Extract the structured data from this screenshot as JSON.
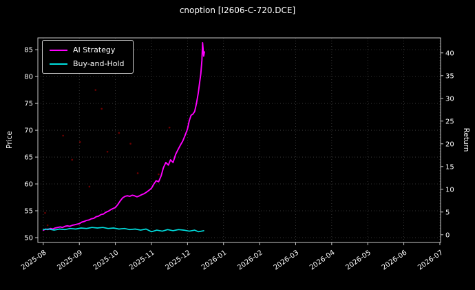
{
  "chart_data": {
    "type": "line",
    "title": "cnoption [I2606-C-720.DCE]",
    "ylabel_left": "Price",
    "ylabel_right": "Return",
    "grid": true,
    "legend_position": "upper-left",
    "xticks": [
      "2025-08",
      "2025-09",
      "2025-10",
      "2025-11",
      "2025-12",
      "2026-01",
      "2026-02",
      "2026-03",
      "2026-04",
      "2026-05",
      "2026-06",
      "2026-07"
    ],
    "yticks_left": [
      50,
      55,
      60,
      65,
      70,
      75,
      80,
      85
    ],
    "yticks_right": [
      0,
      5,
      10,
      15,
      20,
      25,
      30,
      35,
      40
    ],
    "xlim": [
      -0.15,
      11.02
    ],
    "ylim_left": [
      49.1,
      87.2
    ],
    "ylim_right": [
      -1.7,
      43.3
    ],
    "colors": {
      "background": "#000000",
      "text": "#ffffff",
      "grid": "#454545",
      "spine": "#c8c8c8",
      "ai_strategy": "#ff00ff",
      "buy_and_hold": "#00e0e0",
      "signal_dots": "#b30000"
    },
    "series": [
      {
        "name": "AI Strategy",
        "color": "#ff00ff",
        "axis": "left",
        "x": [
          0,
          0.07,
          0.13,
          0.2,
          0.27,
          0.33,
          0.4,
          0.47,
          0.53,
          0.6,
          0.67,
          0.73,
          0.8,
          0.87,
          0.93,
          1,
          1.07,
          1.13,
          1.2,
          1.27,
          1.33,
          1.4,
          1.47,
          1.53,
          1.6,
          1.67,
          1.73,
          1.8,
          1.87,
          1.93,
          2,
          2.07,
          2.13,
          2.2,
          2.27,
          2.33,
          2.4,
          2.47,
          2.53,
          2.6,
          2.67,
          2.73,
          2.8,
          2.87,
          2.93,
          3,
          3.07,
          3.13,
          3.2,
          3.27,
          3.33,
          3.4,
          3.47,
          3.53,
          3.6,
          3.67,
          3.73,
          3.8,
          3.87,
          3.93,
          4,
          4.05,
          4.1,
          4.15,
          4.2,
          4.25,
          4.3,
          4.33,
          4.37,
          4.4,
          4.42,
          4.45,
          4.47
        ],
        "y": [
          51.4,
          51.6,
          51.5,
          51.7,
          51.6,
          51.8,
          51.9,
          52,
          51.9,
          52.1,
          52.2,
          52.1,
          52.3,
          52.4,
          52.5,
          52.6,
          52.9,
          53,
          53.2,
          53.3,
          53.5,
          53.6,
          53.9,
          54,
          54.3,
          54.4,
          54.7,
          54.9,
          55.2,
          55.4,
          55.6,
          56.2,
          56.8,
          57.4,
          57.7,
          57.8,
          57.7,
          57.9,
          57.8,
          57.6,
          57.8,
          58,
          58.2,
          58.5,
          58.8,
          59.2,
          60,
          60.6,
          60.4,
          61.5,
          63,
          64,
          63.5,
          64.5,
          64,
          65.5,
          66.3,
          67.2,
          68,
          69,
          70.2,
          71.8,
          72.8,
          73,
          73.5,
          75,
          77,
          78.5,
          80.5,
          83,
          86.3,
          83.8,
          84.6
        ]
      },
      {
        "name": "Buy-and-Hold",
        "color": "#00e0e0",
        "axis": "left",
        "x": [
          0,
          0.15,
          0.3,
          0.45,
          0.6,
          0.75,
          0.9,
          1.05,
          1.2,
          1.35,
          1.5,
          1.65,
          1.8,
          1.95,
          2.1,
          2.25,
          2.4,
          2.55,
          2.7,
          2.85,
          3,
          3.15,
          3.3,
          3.45,
          3.6,
          3.75,
          3.9,
          4.05,
          4.2,
          4.3,
          4.45
        ],
        "y": [
          51.5,
          51.6,
          51.4,
          51.6,
          51.5,
          51.7,
          51.6,
          51.8,
          51.7,
          51.9,
          51.8,
          51.9,
          51.7,
          51.8,
          51.6,
          51.7,
          51.5,
          51.6,
          51.4,
          51.6,
          51.1,
          51.4,
          51.2,
          51.5,
          51.3,
          51.5,
          51.4,
          51.2,
          51.4,
          51.1,
          51.3
        ]
      }
    ],
    "scatter": {
      "name": "signal-dots",
      "color": "#b30000",
      "x": [
        0.05,
        0.12,
        0.55,
        0.8,
        1.02,
        1.28,
        1.45,
        1.62,
        1.78,
        2.1,
        2.42,
        2.62,
        3.2,
        3.5
      ],
      "y": [
        54.6,
        52.3,
        69,
        64.5,
        67.8,
        59.5,
        77.5,
        74,
        66,
        69.5,
        67.5,
        62,
        61.8,
        70.5
      ]
    }
  }
}
